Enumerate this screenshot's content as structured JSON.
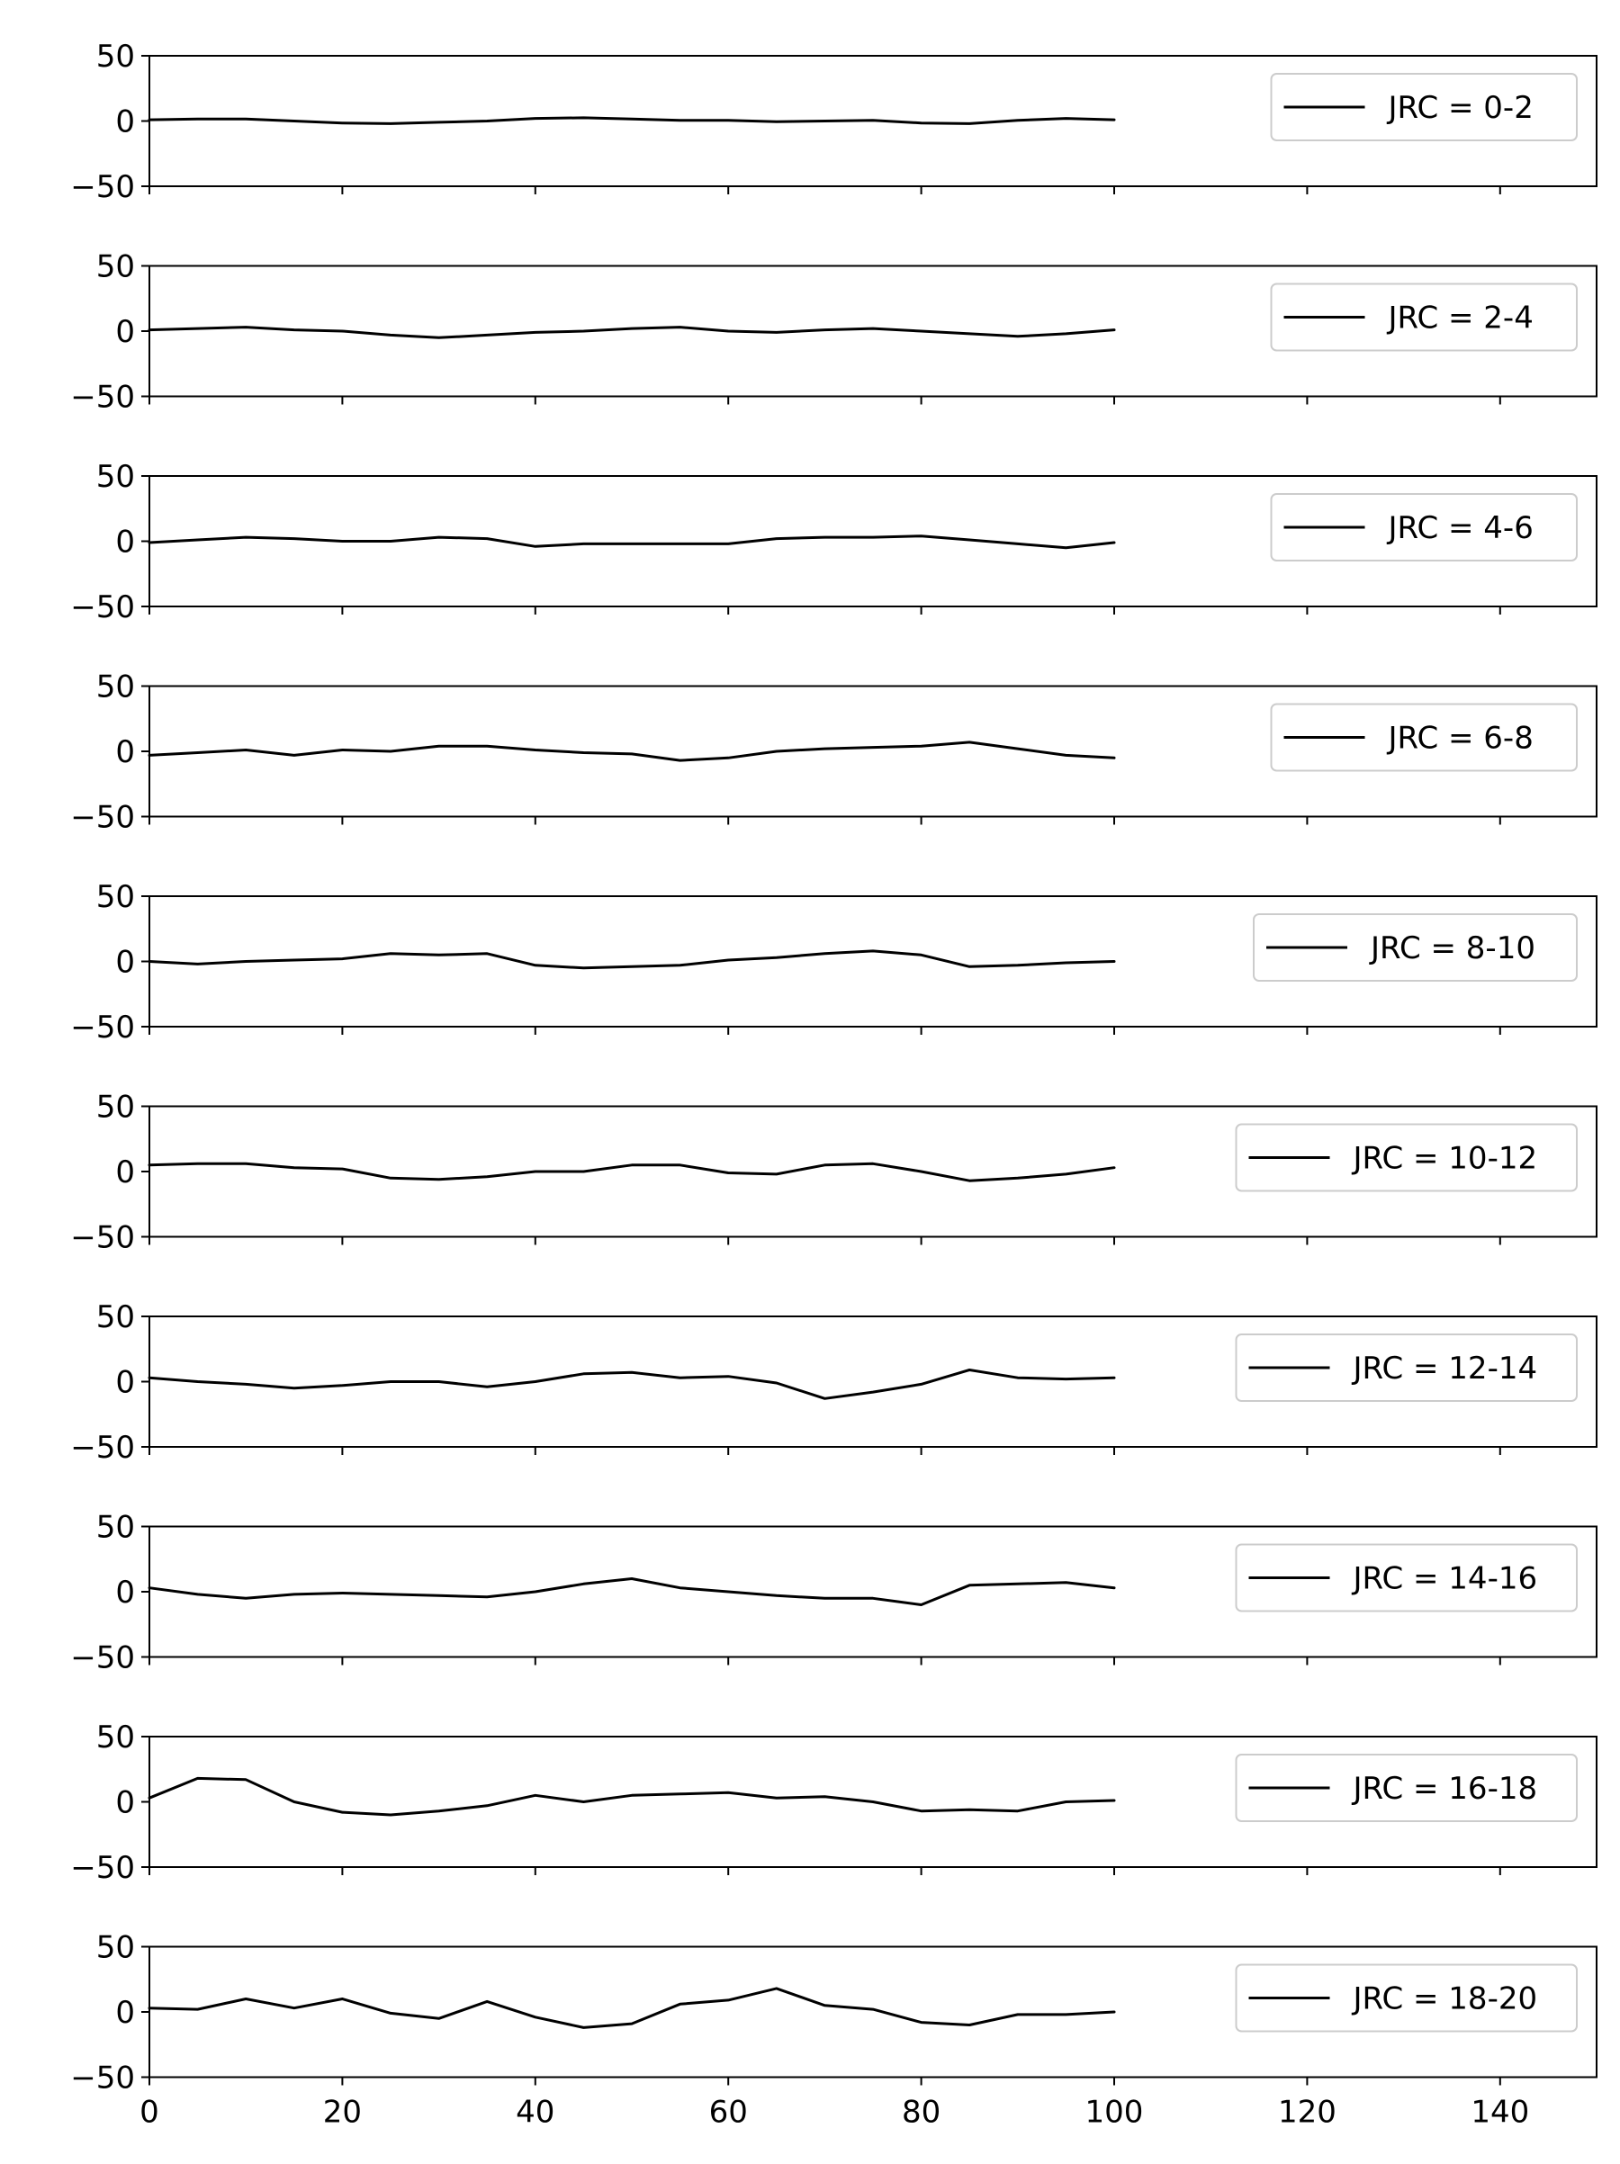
{
  "chart_data": {
    "type": "line",
    "layout": "stacked-subplots",
    "shared_x": true,
    "xlim": [
      0,
      150
    ],
    "xticks": [
      0,
      20,
      40,
      60,
      80,
      100,
      120,
      140
    ],
    "ylim": [
      -50,
      50
    ],
    "yticks": [
      50,
      0,
      -50
    ],
    "ytick_labels": [
      "50",
      "0",
      "−50"
    ],
    "legend_position": "upper right",
    "line_color": "#000000",
    "x": [
      0,
      5,
      10,
      15,
      20,
      25,
      30,
      35,
      40,
      45,
      50,
      55,
      60,
      65,
      70,
      75,
      80,
      85,
      90,
      95,
      100
    ],
    "series": [
      {
        "name": "JRC = 0-2",
        "values": [
          1,
          1.5,
          1.5,
          0,
          -1.5,
          -2,
          -1,
          0,
          2,
          2.5,
          1.5,
          0.5,
          0.5,
          -0.5,
          0,
          0.5,
          -1.5,
          -2,
          0.5,
          2,
          1
        ]
      },
      {
        "name": "JRC = 2-4",
        "values": [
          1,
          2,
          3,
          1,
          0,
          -3,
          -5,
          -3,
          -1,
          0,
          2,
          3,
          0,
          -1,
          1,
          2,
          0,
          -2,
          -4,
          -2,
          1
        ]
      },
      {
        "name": "JRC = 4-6",
        "values": [
          -1,
          1,
          3,
          2,
          0,
          0,
          3,
          2,
          -4,
          -2,
          -2,
          -2,
          -2,
          2,
          3,
          3,
          4,
          1,
          -2,
          -5,
          -1
        ]
      },
      {
        "name": "JRC = 6-8",
        "values": [
          -3,
          -1,
          1,
          -3,
          1,
          0,
          4,
          4,
          1,
          -1,
          -2,
          -7,
          -5,
          0,
          2,
          3,
          4,
          7,
          2,
          -3,
          -5
        ]
      },
      {
        "name": "JRC = 8-10",
        "values": [
          0,
          -2,
          0,
          1,
          2,
          6,
          5,
          6,
          -3,
          -5,
          -4,
          -3,
          1,
          3,
          6,
          8,
          5,
          -4,
          -3,
          -1,
          0
        ]
      },
      {
        "name": "JRC = 10-12",
        "values": [
          5,
          6,
          6,
          3,
          2,
          -5,
          -6,
          -4,
          0,
          0,
          5,
          5,
          -1,
          -2,
          5,
          6,
          0,
          -7,
          -5,
          -2,
          3
        ]
      },
      {
        "name": "JRC = 12-14",
        "values": [
          3,
          0,
          -2,
          -5,
          -3,
          0,
          0,
          -4,
          0,
          6,
          7,
          3,
          4,
          -1,
          -13,
          -8,
          -2,
          9,
          3,
          2,
          3
        ]
      },
      {
        "name": "JRC = 14-16",
        "values": [
          3,
          -2,
          -5,
          -2,
          -1,
          -2,
          -3,
          -4,
          0,
          6,
          10,
          3,
          0,
          -3,
          -5,
          -5,
          -10,
          5,
          6,
          7,
          3
        ]
      },
      {
        "name": "JRC = 16-18",
        "values": [
          3,
          18,
          17,
          0,
          -8,
          -10,
          -7,
          -3,
          5,
          0,
          5,
          6,
          7,
          3,
          4,
          0,
          -7,
          -6,
          -7,
          0,
          1
        ]
      },
      {
        "name": "JRC = 18-20",
        "values": [
          3,
          2,
          10,
          3,
          10,
          -1,
          -5,
          8,
          -4,
          -12,
          -9,
          6,
          9,
          18,
          5,
          2,
          -8,
          -10,
          -2,
          -2,
          0
        ]
      }
    ]
  }
}
